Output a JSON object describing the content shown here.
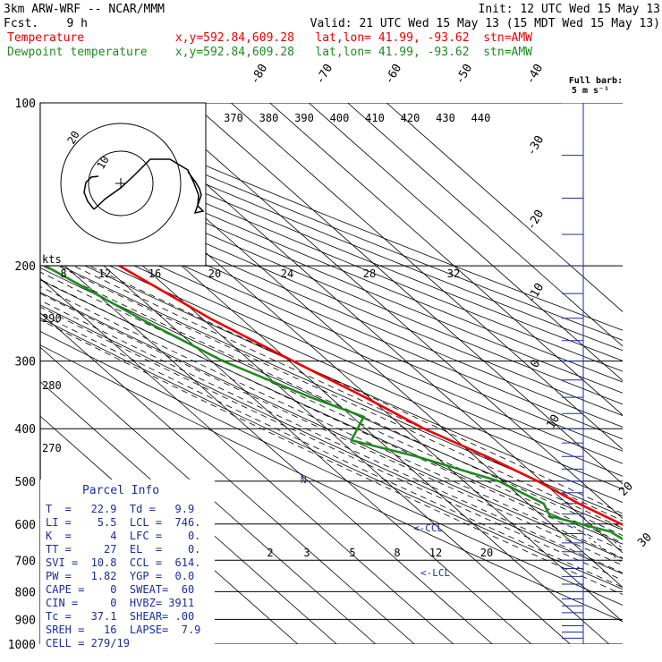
{
  "header": {
    "model": "3km ARW-WRF -- NCAR/MMM",
    "init": "Init: 12 UTC Wed 15 May 13",
    "fcst": "Fcst.    9 h",
    "valid": "Valid: 21 UTC Wed 15 May 13 (15 MDT Wed 15 May 13)",
    "temp_line": "Temperature             x,y=592.84,609.28   lat,lon= 41.99, -93.62  stn=AMW",
    "dew_line": "Dewpoint temperature    x,y=592.84,609.28   lat,lon= 41.99, -93.62  stn=AMW",
    "barb_key_1": "Full barb:",
    "barb_key_2": "5 m s⁻¹",
    "hodo_units": "kts"
  },
  "colors": {
    "temperature": "#ee0000",
    "dewpoint": "#1e8c1e",
    "parcel_text": "#1a2e9c",
    "grid": "#000000"
  },
  "chart_data": {
    "type": "line",
    "pressure_levels": [
      "100",
      "200",
      "300",
      "400",
      "500",
      "600",
      "700",
      "800",
      "900",
      "1000"
    ],
    "isotherm_labels": [
      "-80",
      "-70",
      "-60",
      "-50",
      "-40",
      "-30",
      "-20",
      "-10",
      "0",
      "10",
      "20",
      "30",
      "40"
    ],
    "theta_labels": [
      "370",
      "380",
      "390",
      "400",
      "410",
      "420",
      "430",
      "440"
    ],
    "dry_adiabat_labels": [
      "290",
      "280",
      "270"
    ],
    "mixing_ratio_labels": [
      "2",
      "3",
      "5",
      "8",
      "12",
      "20"
    ],
    "hodograph_ring_labels": [
      "8",
      "12",
      "16",
      "20",
      "24",
      "28",
      "32"
    ],
    "hodo_ring_labels": [
      "10",
      "20"
    ],
    "series": [
      {
        "name": "Temperature",
        "values": [
          [
            100,
            -58.5
          ],
          [
            150,
            -53
          ],
          [
            175,
            -55
          ],
          [
            200,
            -56
          ],
          [
            250,
            -48
          ],
          [
            300,
            -39
          ],
          [
            350,
            -31
          ],
          [
            400,
            -25
          ],
          [
            450,
            -17
          ],
          [
            500,
            -11
          ],
          [
            550,
            -7
          ],
          [
            600,
            -2
          ],
          [
            650,
            3
          ],
          [
            700,
            6
          ],
          [
            750,
            9
          ],
          [
            800,
            11
          ],
          [
            850,
            14
          ],
          [
            900,
            17
          ],
          [
            950,
            21
          ],
          [
            1000,
            24
          ]
        ]
      },
      {
        "name": "Dewpoint temperature",
        "values": [
          [
            100,
            -82
          ],
          [
            150,
            -80
          ],
          [
            175,
            -79
          ],
          [
            200,
            -75
          ],
          [
            250,
            -66
          ],
          [
            300,
            -57
          ],
          [
            350,
            -45
          ],
          [
            380,
            -37
          ],
          [
            420,
            -47
          ],
          [
            450,
            -35
          ],
          [
            500,
            -21
          ],
          [
            550,
            -16
          ],
          [
            580,
            -18
          ],
          [
            620,
            -7
          ],
          [
            680,
            -4
          ],
          [
            700,
            -10
          ],
          [
            800,
            -13
          ],
          [
            900,
            -14
          ],
          [
            940,
            9
          ],
          [
            1000,
            10
          ]
        ]
      }
    ],
    "annotations": [
      "<-CCL",
      "<-LCL",
      "N"
    ]
  },
  "parcel": {
    "title": "Parcel Info",
    "rows": [
      "T  =   22.9  Td =   9.9",
      "LI =    5.5  LCL =  746.",
      "K  =      4  LFC =    0.",
      "TT =     27  EL  =    0.",
      "SVI =  10.8  CCL =  614.",
      "PW =   1.82  YGP =  0.0",
      "CAPE =    0  SWEAT=  60",
      "CIN =     0  HVBZ= 3911",
      "Tc =   37.1  SHEAR= .00",
      "SREH =   16  LAPSE=  7.9",
      "CELL = 279/19"
    ]
  }
}
